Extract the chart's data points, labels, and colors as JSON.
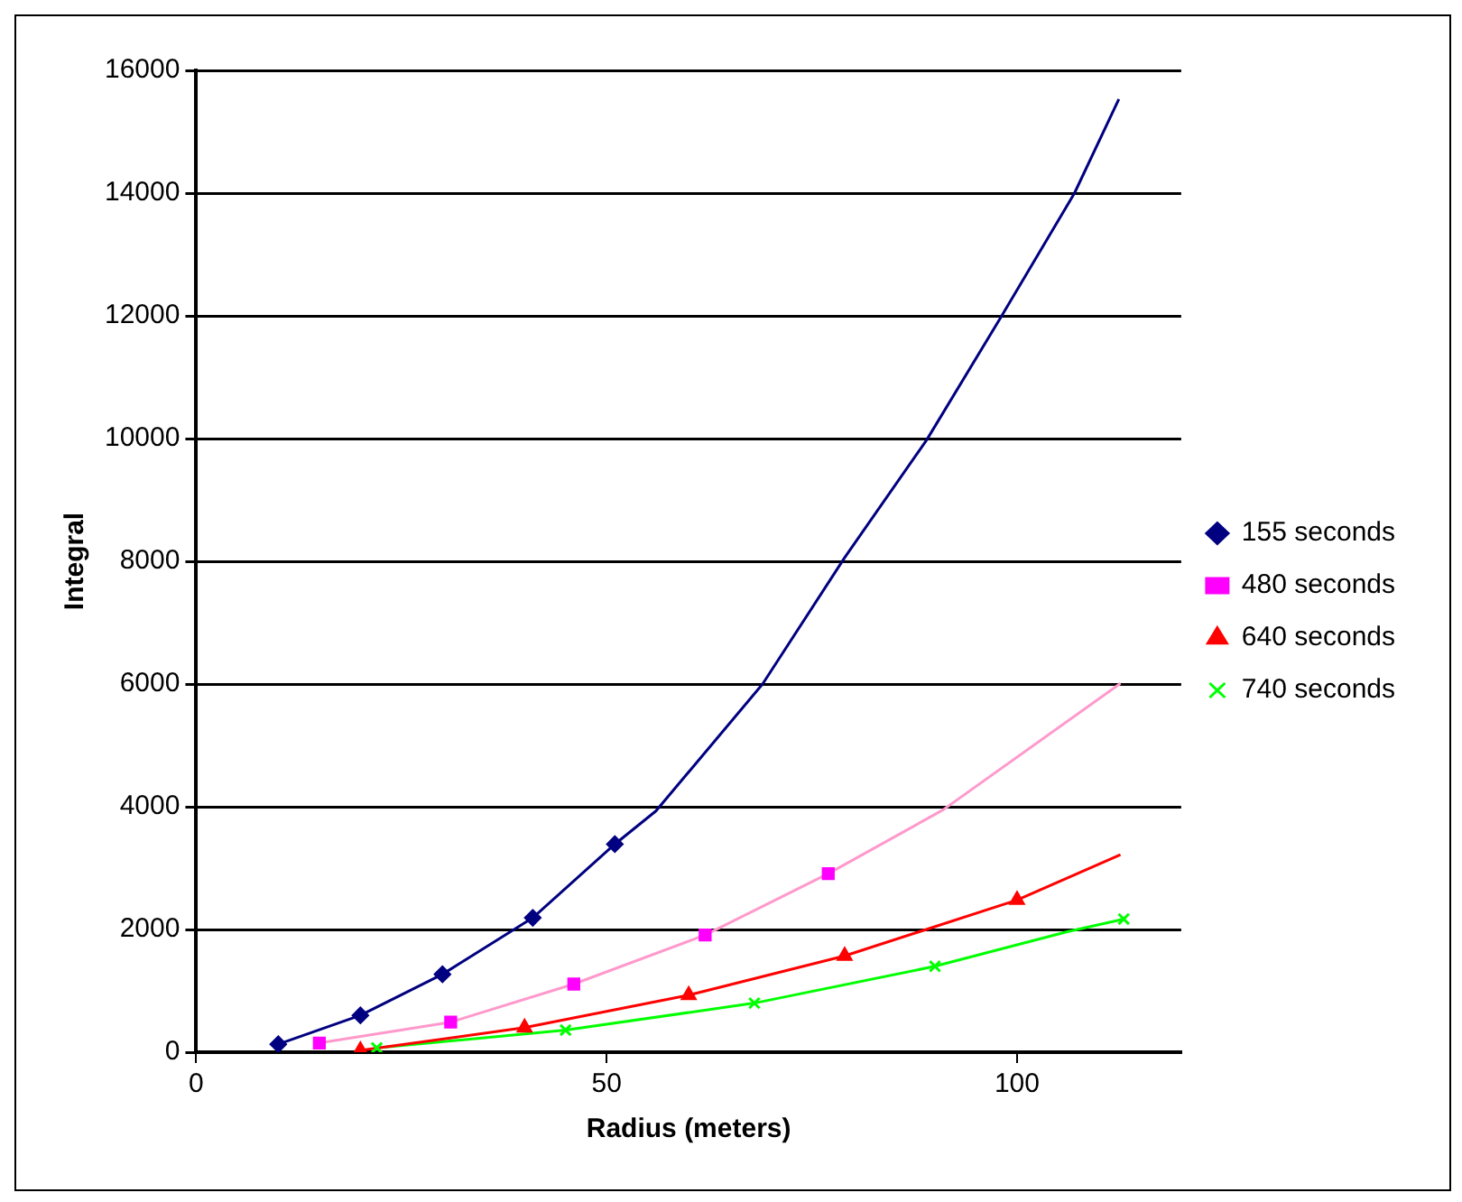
{
  "chart_data": {
    "type": "scatter",
    "xlabel": "Radius (meters)",
    "ylabel": "Integral",
    "xlim": [
      0,
      120
    ],
    "xticks": [
      0,
      50,
      100
    ],
    "ylim": [
      0,
      16000
    ],
    "yticks": [
      0,
      2000,
      4000,
      6000,
      8000,
      10000,
      12000,
      14000,
      16000
    ],
    "grid": "y",
    "legend": "right",
    "series": [
      {
        "name": "155 seconds",
        "type": "scatter",
        "marker": "diamond",
        "color": "#000080",
        "x": [
          10,
          20,
          30,
          41,
          51
        ],
        "values": [
          130,
          600,
          1270,
          2190,
          3390
        ]
      },
      {
        "name": "480 seconds",
        "type": "scatter",
        "marker": "square",
        "color": "#ff00ff",
        "x": [
          15,
          31,
          46,
          62,
          77
        ],
        "values": [
          150,
          490,
          1110,
          1910,
          2910
        ]
      },
      {
        "name": "640 seconds",
        "type": "scatter",
        "marker": "triangle",
        "color": "#ff0000",
        "x": [
          20,
          40,
          60,
          79,
          100
        ],
        "values": [
          30,
          400,
          930,
          1570,
          2480
        ]
      },
      {
        "name": "740 seconds",
        "type": "scatter",
        "marker": "cross",
        "color": "#00ff00",
        "x": [
          22,
          45,
          68,
          90,
          113
        ],
        "values": [
          70,
          360,
          800,
          1400,
          2170
        ]
      },
      {
        "type": "line",
        "marker": "none",
        "color": "#000080",
        "x": [
          10,
          20,
          30,
          41,
          51,
          56,
          69,
          79,
          89,
          98,
          107,
          112.4
        ],
        "values": [
          130,
          600,
          1270,
          2190,
          3390,
          3930,
          6000,
          8060,
          9980,
          11970,
          14000,
          15530
        ]
      },
      {
        "type": "line",
        "marker": "none",
        "color": "#ff99cc",
        "x": [
          15,
          31,
          46,
          62,
          77,
          91,
          112.6
        ],
        "values": [
          150,
          490,
          1110,
          1910,
          2910,
          3950,
          6010
        ]
      },
      {
        "type": "line",
        "marker": "none",
        "color": "#ff0000",
        "x": [
          20,
          40,
          60,
          79,
          88,
          100,
          112.6
        ],
        "values": [
          30,
          400,
          930,
          1570,
          1960,
          2480,
          3220
        ]
      },
      {
        "type": "line",
        "marker": "none",
        "color": "#00ff00",
        "x": [
          22,
          45,
          68,
          90,
          106,
          113
        ],
        "values": [
          70,
          360,
          800,
          1400,
          1960,
          2170
        ]
      }
    ]
  }
}
